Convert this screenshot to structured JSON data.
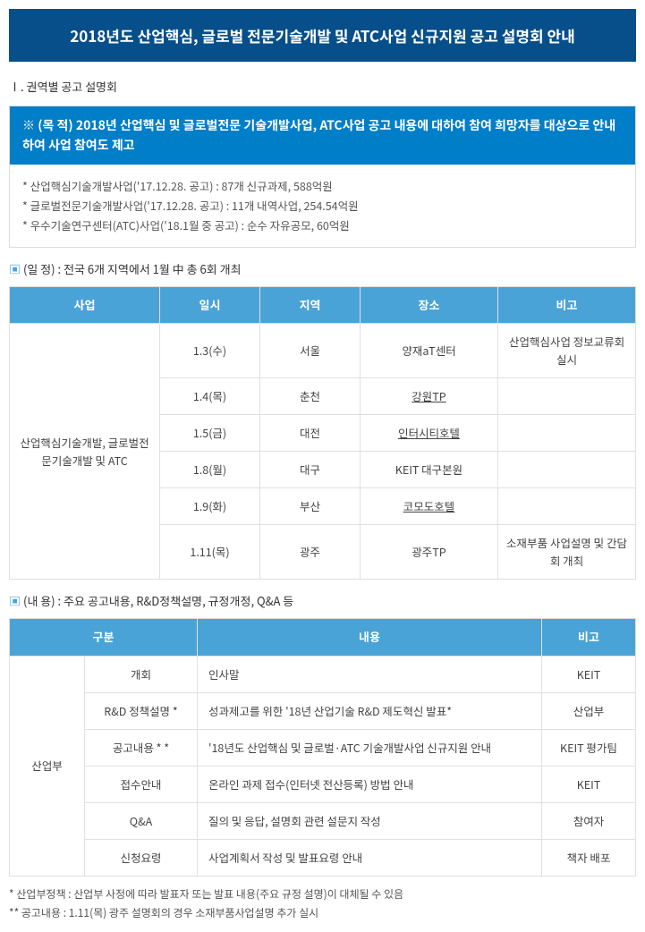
{
  "colors": {
    "title_bg": "#074f8a",
    "accent_bg": "#007ec8",
    "th_bg": "#4aa3d6",
    "border": "#e0e0e0",
    "text": "#333333"
  },
  "title": "2018년도 산업핵심, 글로벌 전문기술개발 및 ATC사업 신규지원 공고 설명회 안내",
  "section1_label": "Ⅰ. 권역별 공고 설명회",
  "purpose": {
    "heading": "(목 적) 2018년 산업핵심 및 글로벌전문 기술개발사업, ATC사업 공고 내용에 대하여 참여 희망자를 대상으로 안내하여 사업 참여도 제고",
    "items": [
      "* 산업핵심기술개발사업('17.12.28. 공고) : 87개 신규과제, 588억원",
      "* 글로벌전문기술개발사업('17.12.28. 공고) : 11개 내역사업, 254.54억원",
      "* 우수기술연구센터(ATC)사업('18.1월 중 공고) : 순수 자유공모, 60억원"
    ]
  },
  "schedule_line": "(일 정) : 전국 6개 지역에서 1월 中 총 6회 개최",
  "sched_table": {
    "headers": [
      "사업",
      "일시",
      "지역",
      "장소",
      "비고"
    ],
    "col_widths": [
      "24%",
      "16%",
      "16%",
      "22%",
      "22%"
    ],
    "group_label": "산업핵심기술개발, 글로벌전문기술개발 및 ATC",
    "rows": [
      {
        "date": "1.3(수)",
        "region": "서울",
        "place": "양재aT센터",
        "place_underline": false,
        "note": "산업핵심사업 정보교류회 실시"
      },
      {
        "date": "1.4(목)",
        "region": "춘천",
        "place": "강원TP",
        "place_underline": true,
        "note": ""
      },
      {
        "date": "1.5(금)",
        "region": "대전",
        "place": "인터시티호텔",
        "place_underline": true,
        "note": ""
      },
      {
        "date": "1.8(월)",
        "region": "대구",
        "place": "KEIT 대구본원",
        "place_underline": false,
        "note": ""
      },
      {
        "date": "1.9(화)",
        "region": "부산",
        "place": "코모도호텔",
        "place_underline": true,
        "note": ""
      },
      {
        "date": "1.11(목)",
        "region": "광주",
        "place": "광주TP",
        "place_underline": false,
        "note": "소재부품 사업설명 및 간담회 개최"
      }
    ]
  },
  "content_line": "(내 용) : 주요 공고내용, R&D정책설명, 규정개정, Q&A 등",
  "content_table": {
    "headers": [
      "구분",
      "",
      "내용",
      "비고"
    ],
    "col_widths": [
      "12%",
      "18%",
      "55%",
      "15%"
    ],
    "group_label": "산업부",
    "rows": [
      {
        "sub": "개회",
        "desc": "인사말",
        "note": "KEIT"
      },
      {
        "sub": "R&D 정책설명 *",
        "desc": "성과제고를 위한 '18년 산업기술 R&D 제도혁신 발표*",
        "note": "산업부"
      },
      {
        "sub": "공고내용 * *",
        "desc": "'18년도 산업핵심 및 글로벌·ATC 기술개발사업 신규지원 안내",
        "note": "KEIT 평가팀"
      },
      {
        "sub": "접수안내",
        "desc": "온라인 과제 접수(인터넷 전산등록) 방법 안내",
        "note": "KEIT"
      },
      {
        "sub": "Q&A",
        "desc": "질의 및 응답, 설명회 관련 설문지 작성",
        "note": "참여자"
      },
      {
        "sub": "신청요령",
        "desc": "사업계획서 작성 및 발표요령 안내",
        "note": "책자 배포"
      }
    ]
  },
  "footnotes": [
    "* 산업부정책 : 산업부 사정에 따라 발표자 또는 발표 내용(주요 규정 설명)이 대체될 수 있음",
    "** 공고내용 : 1.11(목) 광주 설명회의 경우 소재부품사업설명 추가 실시"
  ]
}
